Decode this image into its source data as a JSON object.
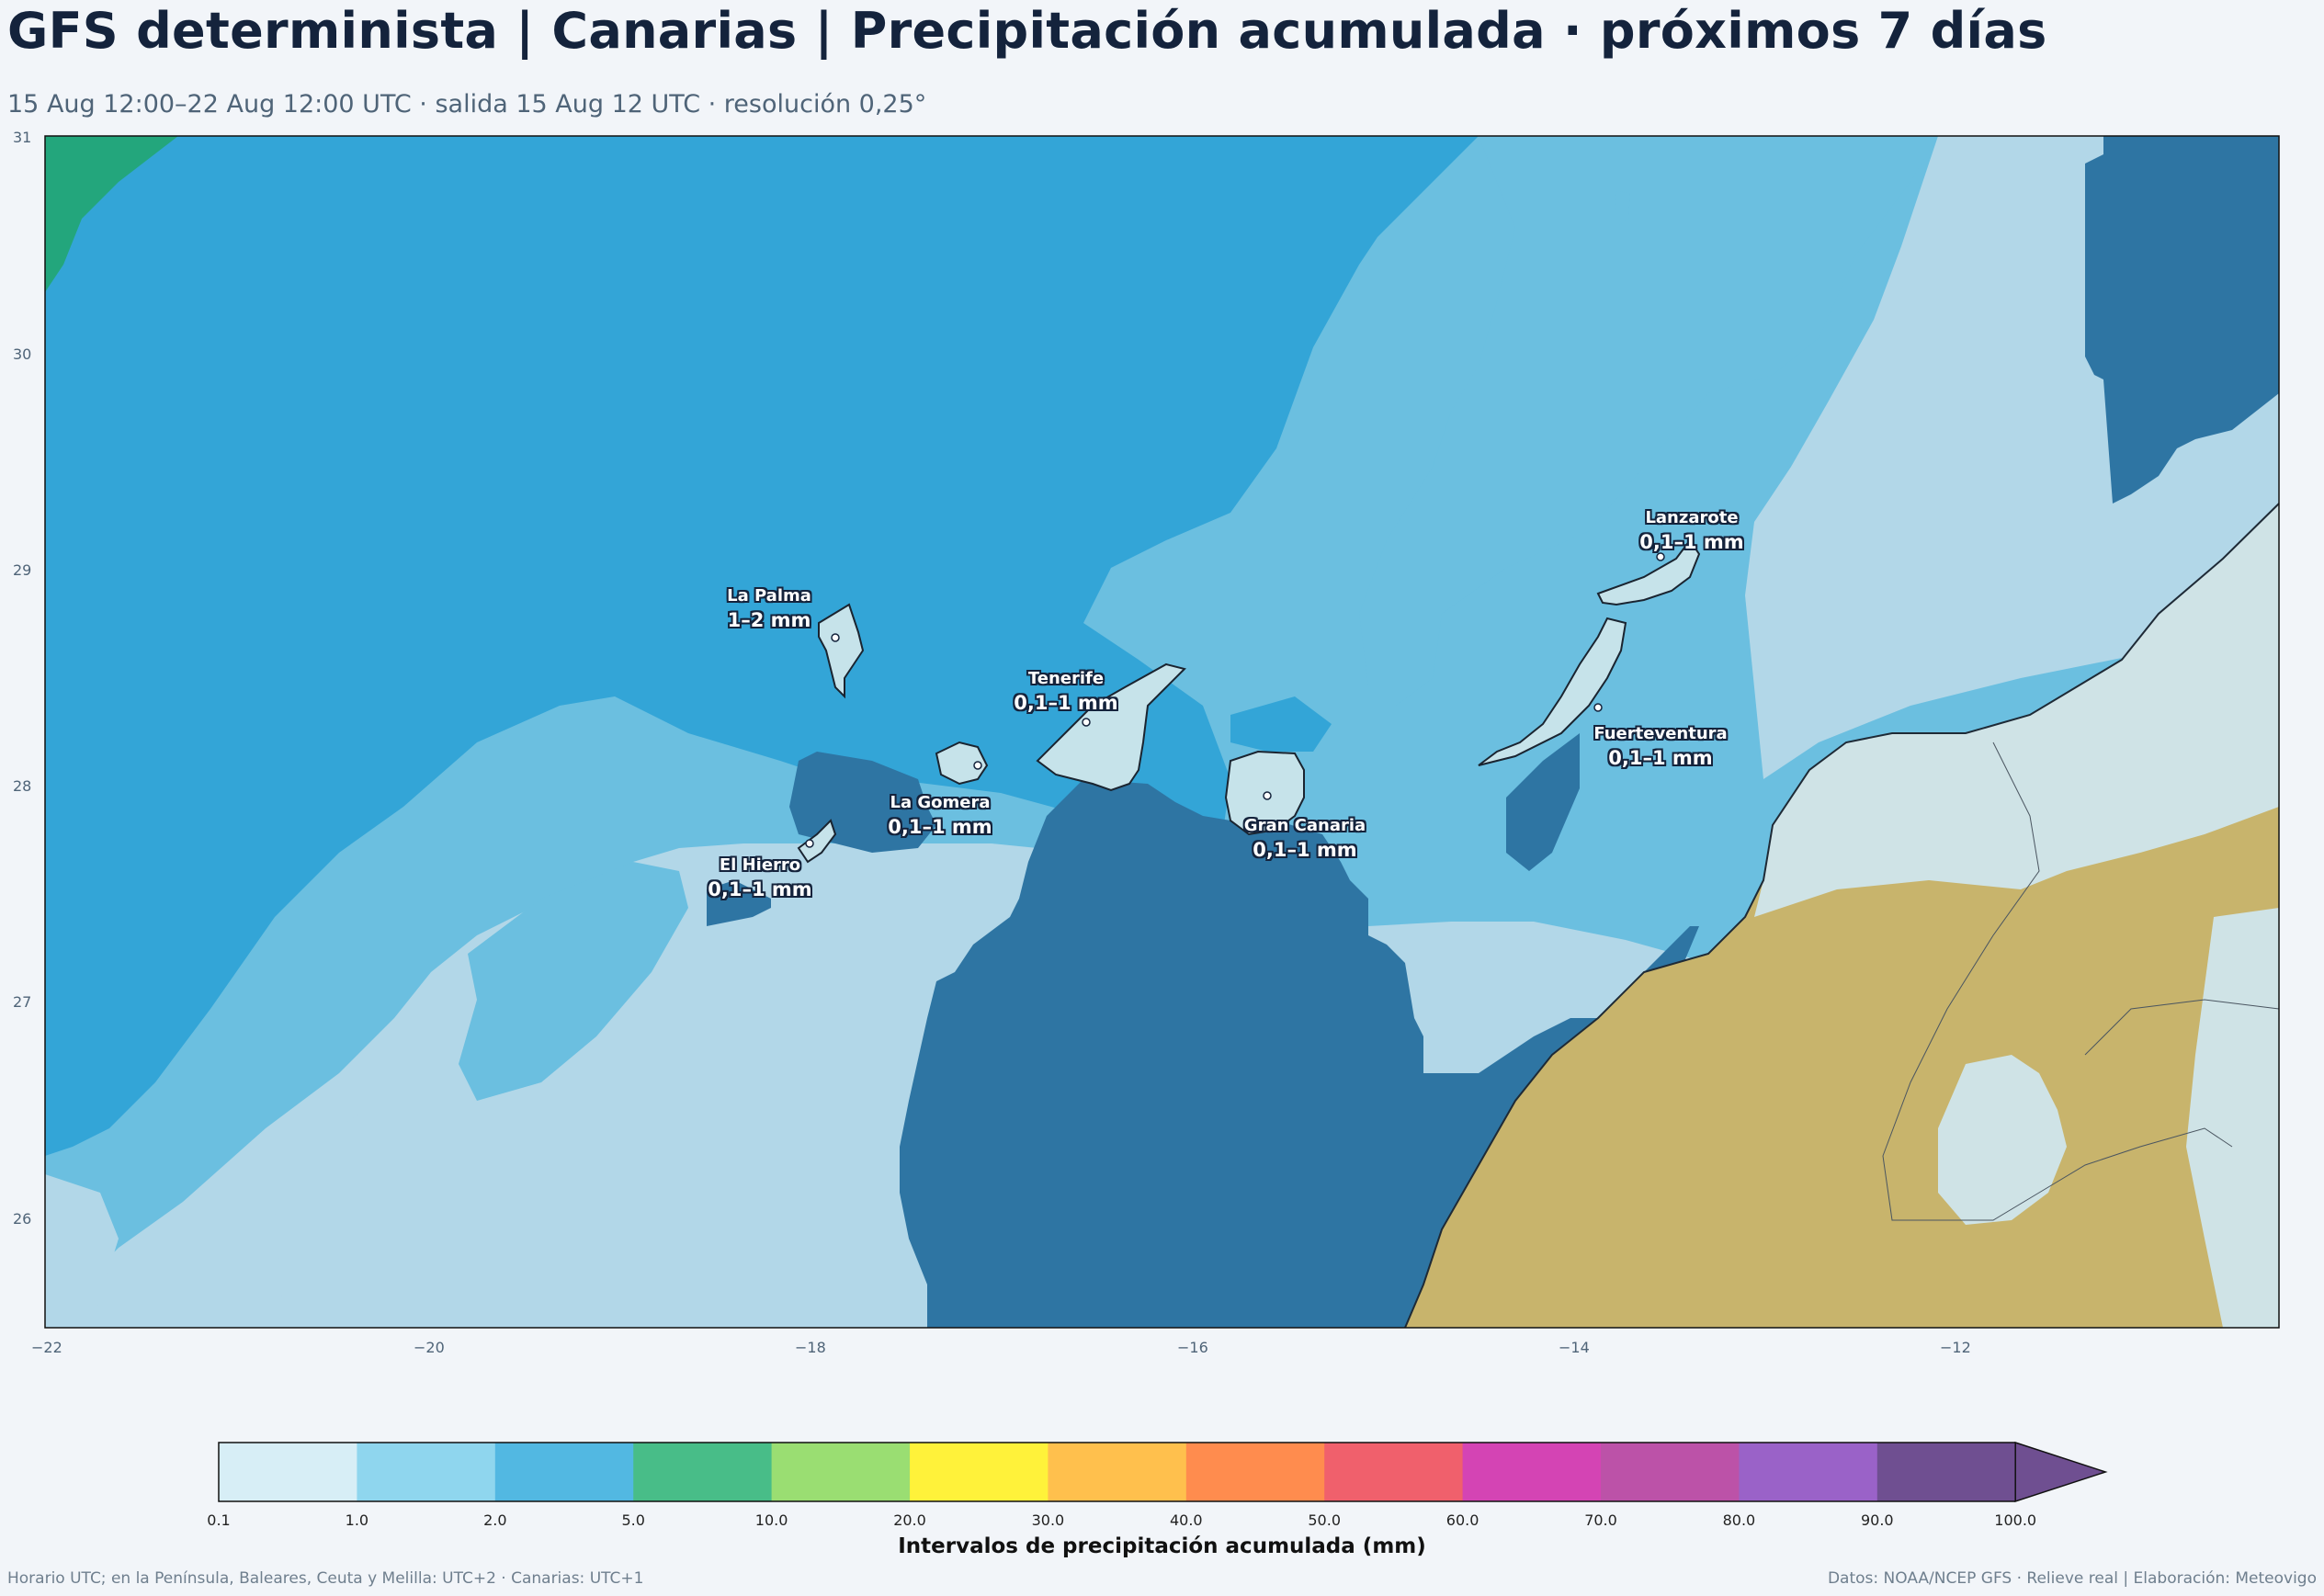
{
  "header": {
    "title": "GFS determinista | Canarias | Precipitación acumulada · próximos 7 días",
    "subtitle": "15 Aug 12:00–22 Aug 12:00 UTC · salida 15 Aug 12 UTC · resolución 0,25°"
  },
  "map": {
    "x_ticks": [
      "−22",
      "−20",
      "−18",
      "−16",
      "−14",
      "−12"
    ],
    "y_ticks": [
      "31",
      "30",
      "29",
      "28",
      "27",
      "26"
    ],
    "lon_range": [
      -22,
      -10.3
    ],
    "lat_range": [
      25.5,
      31
    ],
    "colors": {
      "lt_blue": "#b2d7e8",
      "mid_blue": "#6bbfe0",
      "blue": "#33a5d7",
      "dark_blue": "#2e75a3",
      "green": "#23a67c",
      "land": "#c8b46c",
      "land_pale": "#cfe3e6"
    },
    "islands": [
      {
        "name": "La Palma",
        "value": "1–2 mm"
      },
      {
        "name": "Tenerife",
        "value": "0,1–1 mm"
      },
      {
        "name": "La Gomera",
        "value": "0,1–1 mm"
      },
      {
        "name": "El Hierro",
        "value": "0,1–1 mm"
      },
      {
        "name": "Gran Canaria",
        "value": "0,1–1 mm"
      },
      {
        "name": "Lanzarote",
        "value": "0,1–1 mm"
      },
      {
        "name": "Fuerteventura",
        "value": "0,1–1 mm"
      }
    ]
  },
  "colorbar": {
    "title": "Intervalos de precipitación acumulada (mm)",
    "labels": [
      "0.1",
      "1.0",
      "2.0",
      "5.0",
      "10.0",
      "20.0",
      "30.0",
      "40.0",
      "50.0",
      "60.0",
      "70.0",
      "80.0",
      "90.0",
      "100.0"
    ],
    "colors": [
      "#d7eef6",
      "#8fd6ee",
      "#52b8e2",
      "#48bd88",
      "#9ade72",
      "#fff23a",
      "#ffc04d",
      "#ff8c4e",
      "#f0606c",
      "#d444b4",
      "#bc52a8",
      "#9a62c8",
      "#6f4f91"
    ],
    "extend_color": "#6f4f91"
  },
  "footer": {
    "left": "Horario UTC; en la Península, Baleares, Ceuta y Melilla: UTC+2 · Canarias: UTC+1",
    "right": "Datos: NOAA/NCEP GFS · Relieve real | Elaboración: Meteovigo"
  }
}
